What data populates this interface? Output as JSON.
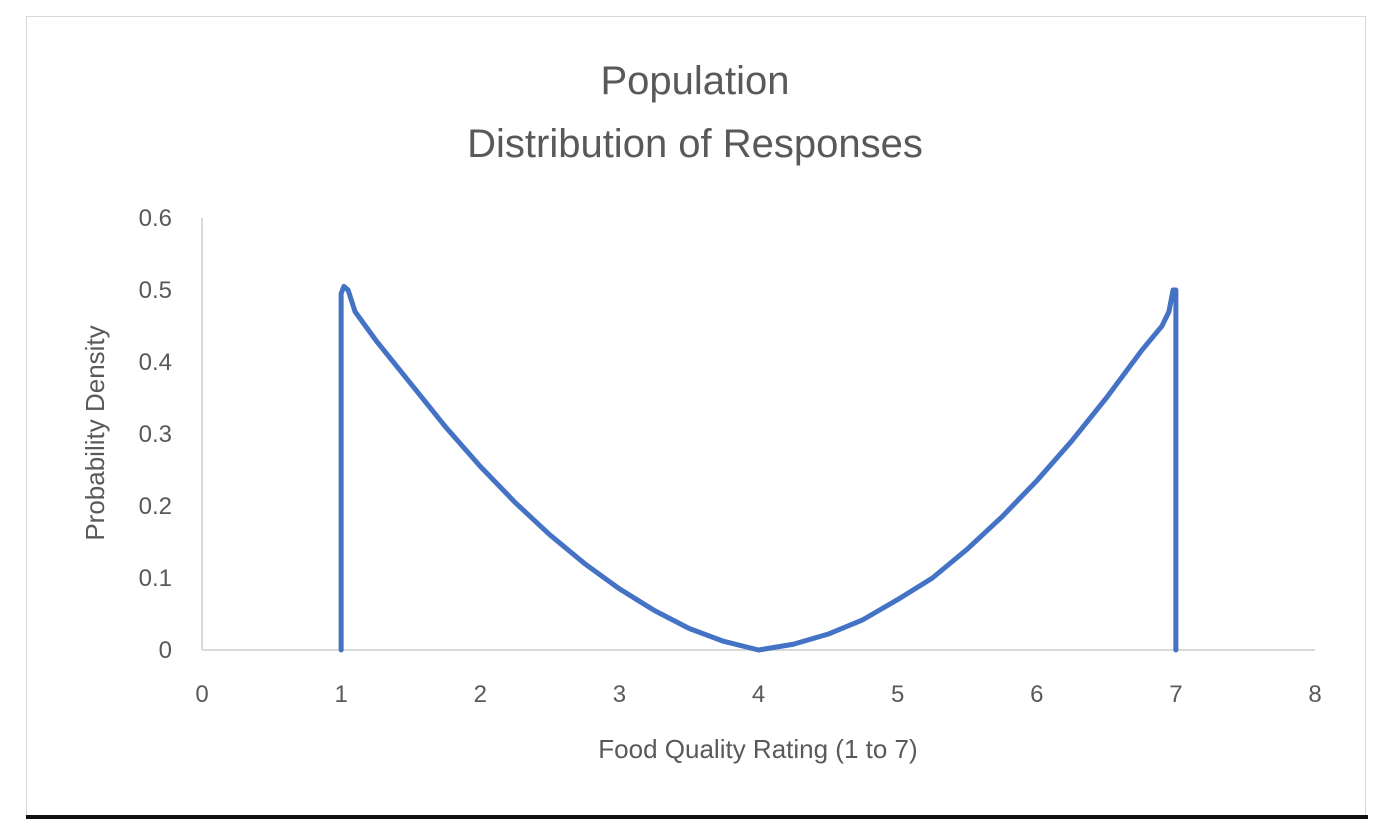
{
  "chart_data": {
    "type": "line",
    "title": [
      "Population",
      "Distribution of Responses"
    ],
    "xlabel": "Food Quality Rating (1 to 7)",
    "ylabel": "Probability Density",
    "xlim": [
      0,
      8
    ],
    "ylim": [
      0,
      0.6
    ],
    "xticks": [
      "0",
      "1",
      "2",
      "3",
      "4",
      "5",
      "6",
      "7",
      "8"
    ],
    "yticks": [
      "0",
      "0.1",
      "0.2",
      "0.3",
      "0.4",
      "0.5",
      "0.6"
    ],
    "grid": false,
    "legend": "none",
    "series": [
      {
        "name": "density",
        "color": "#4472c4",
        "x": [
          1.0,
          1.0,
          1.02,
          1.05,
          1.1,
          1.25,
          1.5,
          1.75,
          2.0,
          2.25,
          2.5,
          2.75,
          3.0,
          3.25,
          3.5,
          3.75,
          4.0,
          4.25,
          4.5,
          4.75,
          5.0,
          5.25,
          5.5,
          5.75,
          6.0,
          6.25,
          6.5,
          6.75,
          6.9,
          6.95,
          6.98,
          7.0,
          7.0
        ],
        "y": [
          0.0,
          0.495,
          0.505,
          0.5,
          0.47,
          0.43,
          0.37,
          0.31,
          0.255,
          0.205,
          0.16,
          0.12,
          0.085,
          0.055,
          0.03,
          0.012,
          0.0,
          0.008,
          0.022,
          0.042,
          0.07,
          0.1,
          0.14,
          0.185,
          0.235,
          0.29,
          0.35,
          0.415,
          0.45,
          0.47,
          0.5,
          0.5,
          0.0
        ]
      }
    ]
  }
}
